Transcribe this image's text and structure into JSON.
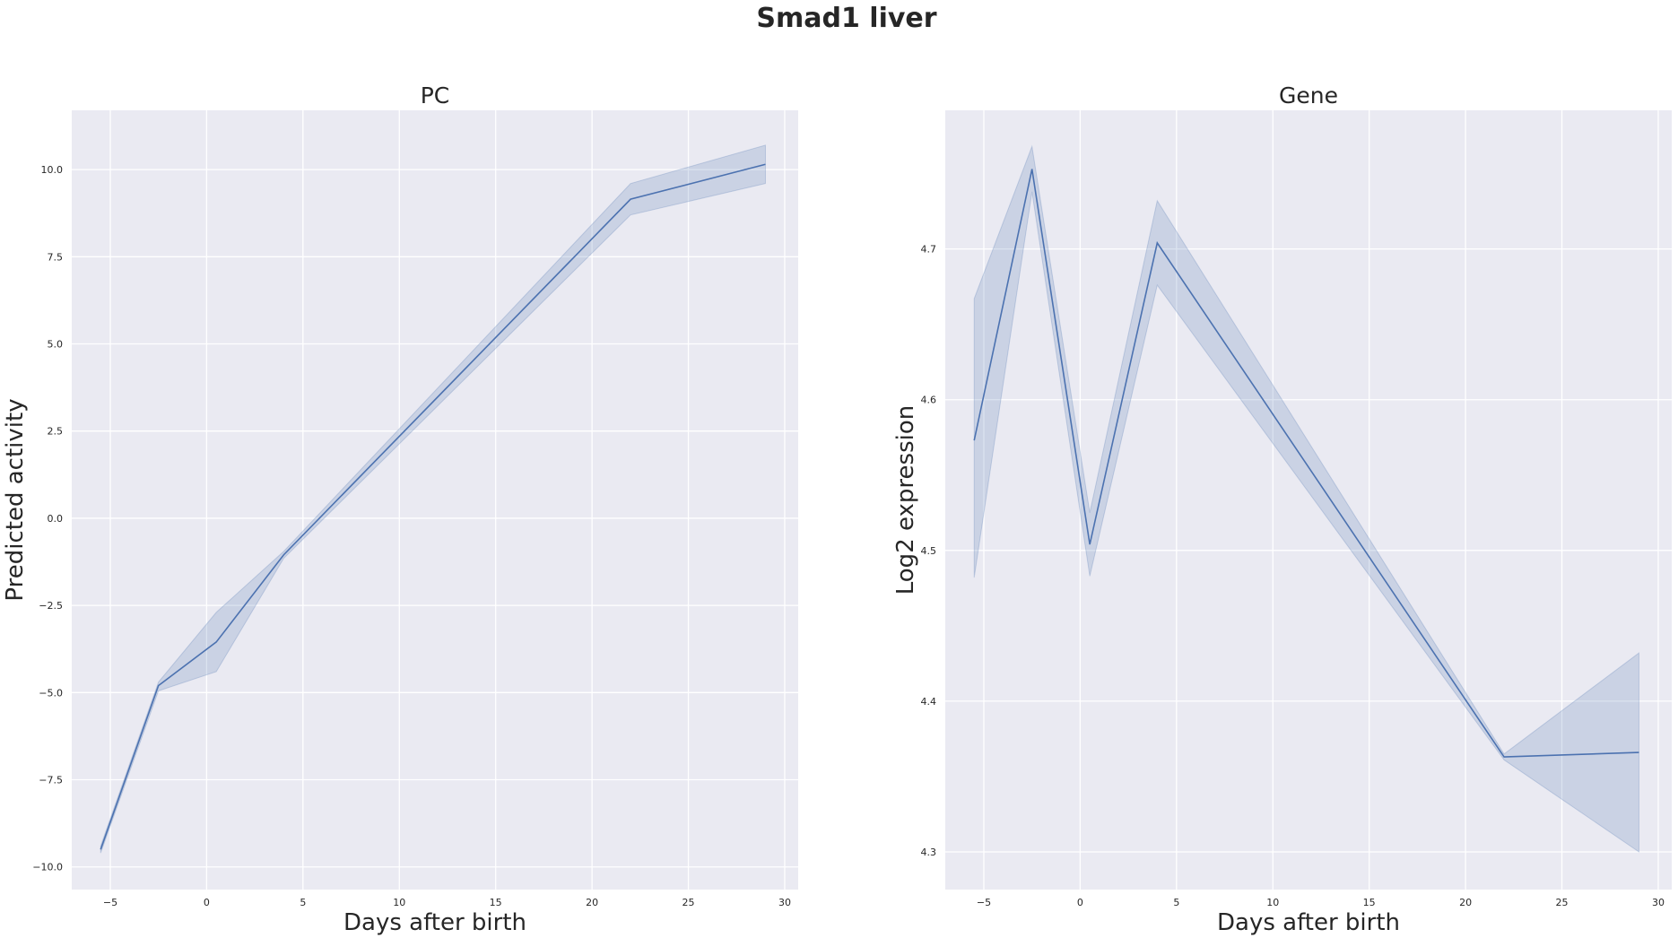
{
  "figure": {
    "title": "Smad1 liver"
  },
  "chart_data": [
    {
      "type": "line",
      "title": "PC",
      "xlabel": "Days after birth",
      "ylabel": "Predicted activity",
      "xlim": [
        -7,
        30.7
      ],
      "ylim": [
        -10.65,
        11.7
      ],
      "xticks": [
        -5,
        0,
        5,
        10,
        15,
        20,
        25,
        30
      ],
      "xtick_labels": [
        "−5",
        "0",
        "5",
        "10",
        "15",
        "20",
        "25",
        "30"
      ],
      "yticks": [
        -10,
        -7.5,
        -5,
        -2.5,
        0,
        2.5,
        5,
        7.5,
        10
      ],
      "ytick_labels": [
        "−10.0",
        "−7.5",
        "−5.0",
        "−2.5",
        "0.0",
        "2.5",
        "5.0",
        "7.5",
        "10.0"
      ],
      "grid": true,
      "background": "#eaeaf2",
      "line_color": "#4c72b0",
      "series": [
        {
          "x": [
            -5.5,
            -2.5,
            0.5,
            4,
            22,
            29
          ],
          "y": [
            -9.5,
            -4.8,
            -3.55,
            -1.05,
            9.15,
            10.15
          ],
          "ci_low": [
            -9.6,
            -4.95,
            -4.4,
            -1.15,
            8.7,
            9.6
          ],
          "ci_high": [
            -9.4,
            -4.7,
            -2.7,
            -0.95,
            9.6,
            10.7
          ]
        }
      ]
    },
    {
      "type": "line",
      "title": "Gene",
      "xlabel": "Days after birth",
      "ylabel": "Log2 expression",
      "xlim": [
        -7,
        30.7
      ],
      "ylim": [
        4.275,
        4.792
      ],
      "xticks": [
        -5,
        0,
        5,
        10,
        15,
        20,
        25,
        30
      ],
      "xtick_labels": [
        "−5",
        "0",
        "5",
        "10",
        "15",
        "20",
        "25",
        "30"
      ],
      "yticks": [
        4.3,
        4.4,
        4.5,
        4.6,
        4.7
      ],
      "ytick_labels": [
        "4.3",
        "4.4",
        "4.5",
        "4.6",
        "4.7"
      ],
      "grid": true,
      "background": "#eaeaf2",
      "line_color": "#4c72b0",
      "series": [
        {
          "x": [
            -5.5,
            -2.5,
            0.5,
            4,
            22,
            29
          ],
          "y": [
            4.573,
            4.753,
            4.504,
            4.704,
            4.363,
            4.366
          ],
          "ci_low": [
            4.482,
            4.738,
            4.483,
            4.676,
            4.361,
            4.3
          ],
          "ci_high": [
            4.667,
            4.768,
            4.525,
            4.732,
            4.365,
            4.432
          ]
        }
      ]
    }
  ]
}
